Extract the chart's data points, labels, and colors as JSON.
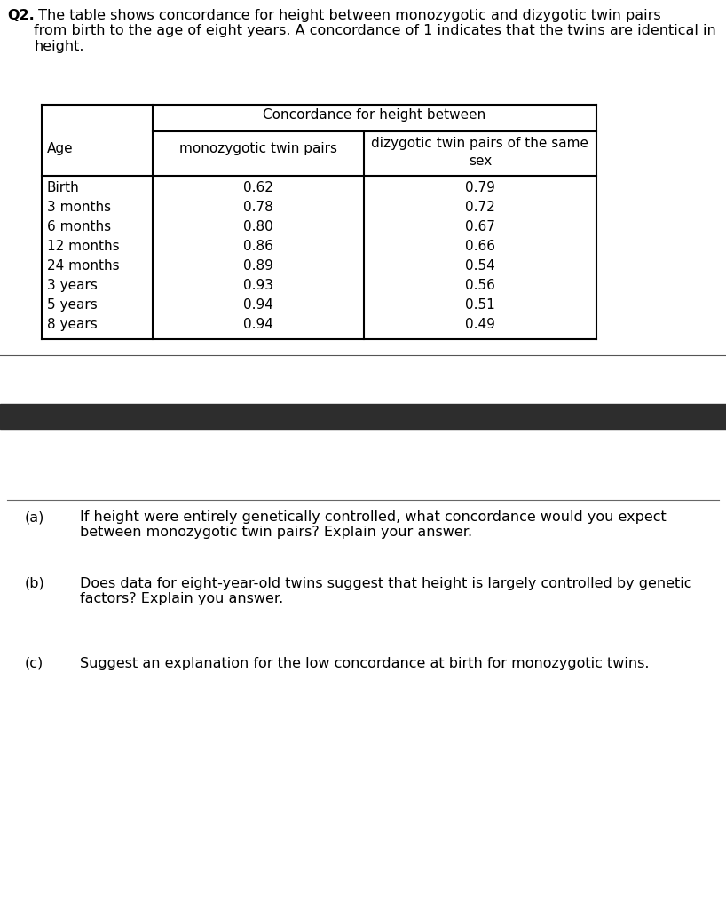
{
  "title_bold": "Q2.",
  "title_text": " The table shows concordance for height between monozygotic and dizygotic twin pairs\nfrom birth to the age of eight years. A concordance of 1 indicates that the twins are identical in\nheight.",
  "table_header_top": "Concordance for height between",
  "table_col1_header": "Age",
  "table_col2_header": "monozygotic twin pairs",
  "table_col3_header": "dizygotic twin pairs of the same\nsex",
  "table_ages": [
    "Birth",
    "3 months",
    "6 months",
    "12 months",
    "24 months",
    "3 years",
    "5 years",
    "8 years"
  ],
  "table_mono": [
    "0.62",
    "0.78",
    "0.80",
    "0.86",
    "0.89",
    "0.93",
    "0.94",
    "0.94"
  ],
  "table_diz": [
    "0.79",
    "0.72",
    "0.67",
    "0.66",
    "0.54",
    "0.56",
    "0.51",
    "0.49"
  ],
  "dark_bar_color": "#2d2d2d",
  "question_a_label": "(a)",
  "question_a_text": "If height were entirely genetically controlled, what concordance would you expect\nbetween monozygotic twin pairs? Explain your answer.",
  "question_b_label": "(b)",
  "question_b_text": "Does data for eight-year-old twins suggest that height is largely controlled by genetic\nfactors? Explain you answer.",
  "question_c_label": "(c)",
  "question_c_text": "Suggest an explanation for the low concordance at birth for monozygotic twins.",
  "bg_color": "#ffffff",
  "text_color": "#000000",
  "font_size_body": 11.5,
  "font_size_table": 11.0
}
